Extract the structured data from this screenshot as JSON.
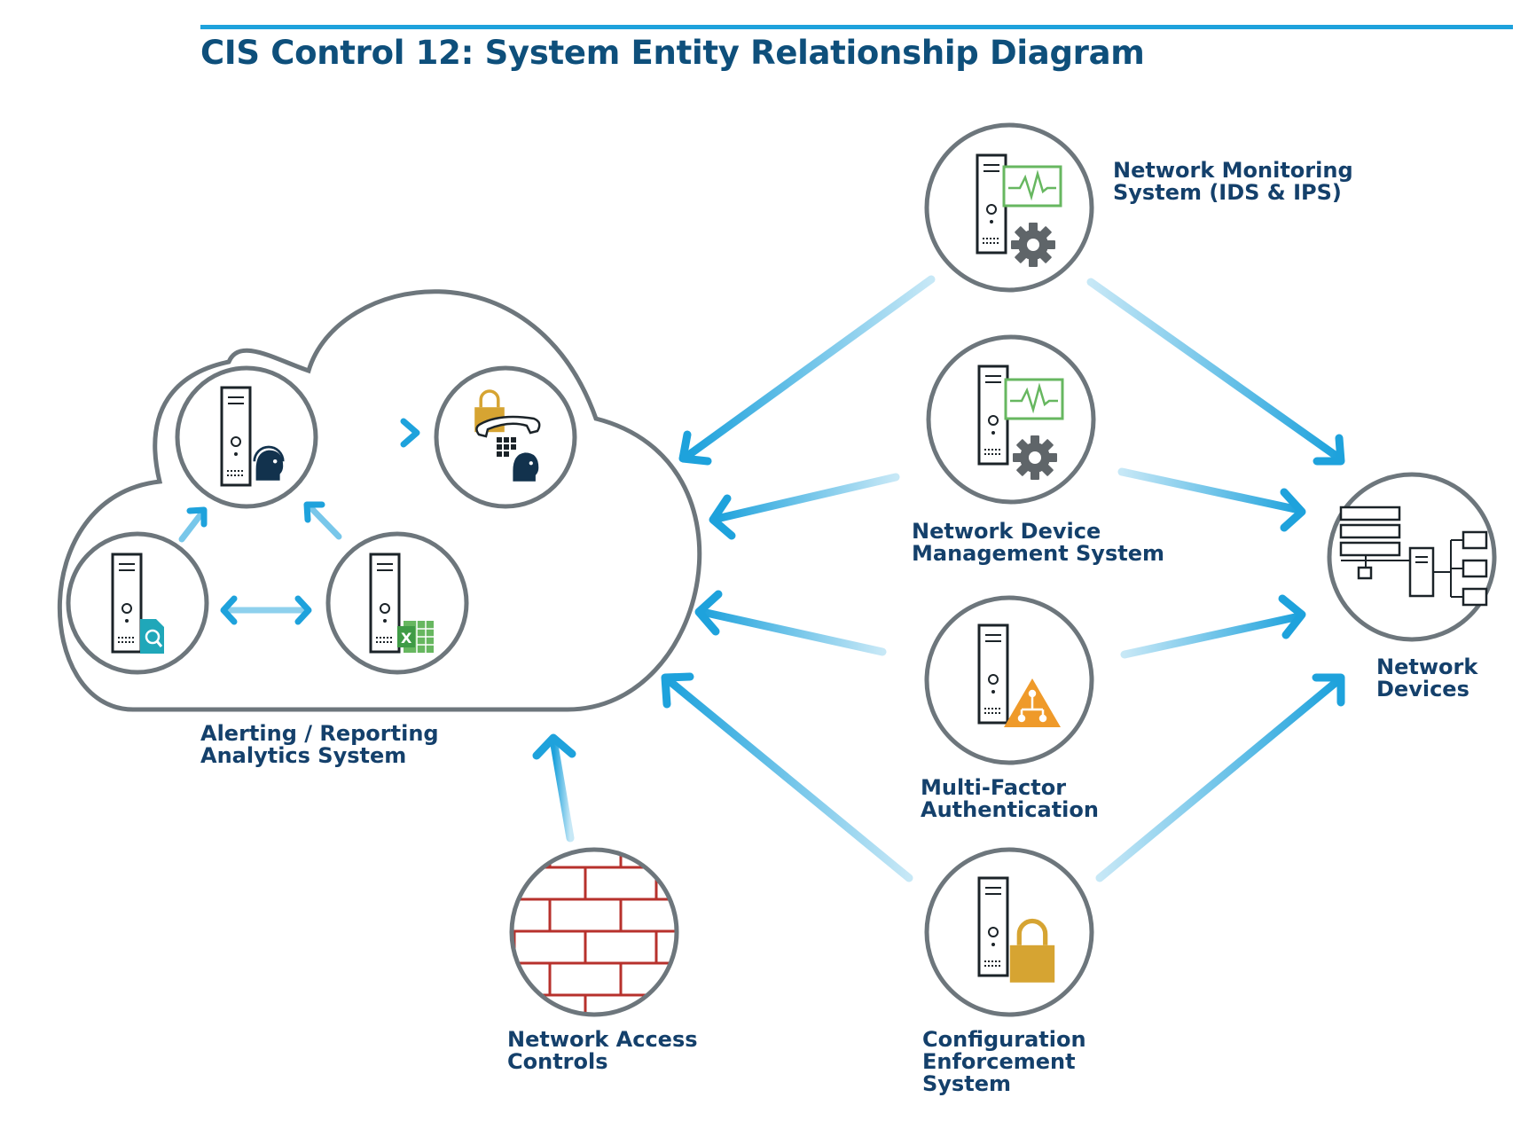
{
  "title": "CIS Control 12: System Entity Relationship Diagram",
  "colors": {
    "title": "#0e4f7b",
    "label": "#14406b",
    "accent_blue": "#1ea2dc",
    "circle_stroke": "#6d767c",
    "gold": "#d6a432",
    "orange": "#ef9a2a",
    "green": "#67b760",
    "teal": "#20a7b9",
    "brick": "#b7312c",
    "gear": "#5f6569"
  },
  "entities": {
    "network_monitoring": {
      "line1": "Network Monitoring",
      "line2": "System (IDS & IPS)",
      "icon": "server-monitor-gear-icon"
    },
    "network_device_mgmt": {
      "line1": "Network Device",
      "line2": "Management System",
      "icon": "server-monitor-gear-icon"
    },
    "mfa": {
      "line1": "Multi-Factor",
      "line2": "Authentication",
      "icon": "server-warning-icon"
    },
    "config_enforcement": {
      "line1": "Configuration",
      "line2": "Enforcement",
      "line3": "System",
      "icon": "server-lock-icon"
    },
    "network_access": {
      "line1": "Network Access",
      "line2": "Controls",
      "icon": "brick-wall-icon"
    },
    "network_devices": {
      "line1": "Network",
      "line2": "Devices",
      "icon": "network-devices-icon"
    },
    "alerting": {
      "line1": "Alerting / Reporting",
      "line2": "Analytics System",
      "icon": "cloud-icon"
    }
  }
}
